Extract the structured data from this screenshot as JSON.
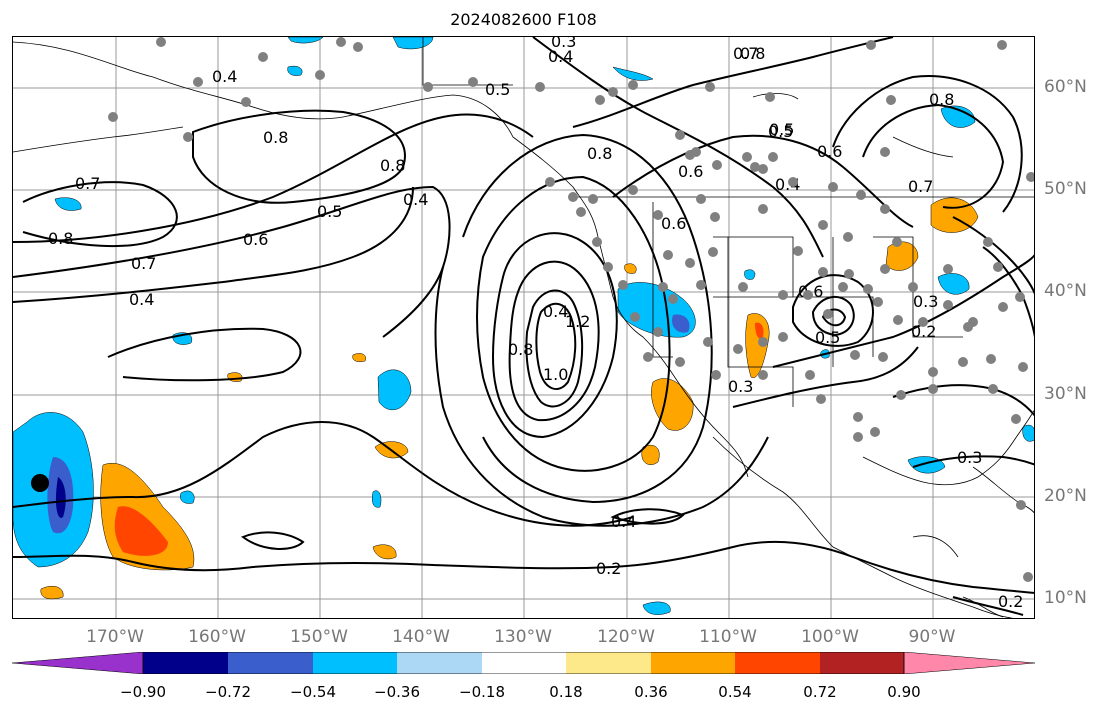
{
  "title": "2024082600 F108",
  "lat_labels": [
    "60°N",
    "50°N",
    "40°N",
    "30°N",
    "20°N",
    "10°N"
  ],
  "lon_labels": [
    "170°W",
    "160°W",
    "150°W",
    "140°W",
    "130°W",
    "120°W",
    "110°W",
    "100°W",
    "90°W"
  ],
  "contour_labels": [
    "0.4",
    "0.5",
    "0.3",
    "0.4",
    "0.8",
    "0.7",
    "0.8",
    "0.7",
    "0.8",
    "0.6",
    "0.5",
    "0.7",
    "0.4",
    "0.6",
    "0.5",
    "0.4",
    "0.4",
    "0.8",
    "1.2",
    "0.8",
    "1.0",
    "0.6",
    "0.8",
    "0.5",
    "0.4",
    "0.6",
    "0.7",
    "0.8",
    "0.6",
    "0.5",
    "0.3",
    "0.2",
    "0.3",
    "0.3",
    "0.4",
    "0.2",
    "0.2"
  ],
  "colorbar": {
    "colors": [
      "#9932cc",
      "#00008b",
      "#3a5fcd",
      "#00bfff",
      "#add8f5",
      "#ffffff",
      "#fde98a",
      "#ffa500",
      "#ff4500",
      "#b22222",
      "#ff88aa"
    ],
    "tick_labels": [
      "−0.90",
      "−0.72",
      "−0.54",
      "−0.36",
      "−0.18",
      "0.18",
      "0.36",
      "0.54",
      "0.72",
      "0.90"
    ]
  },
  "colors": {
    "gridline": "#999999",
    "contour": "#000000",
    "station_dot": "#808080",
    "marker": "#000000"
  }
}
